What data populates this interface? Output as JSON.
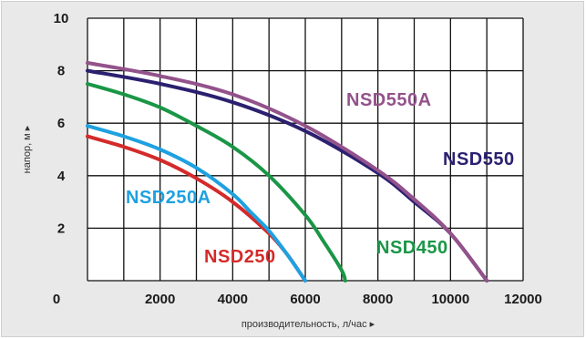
{
  "chart_data": {
    "type": "line",
    "title": "",
    "xlabel": "производительность, л/час ▸",
    "ylabel": "напор, м ▸",
    "xlim": [
      0,
      12000
    ],
    "ylim": [
      0,
      10
    ],
    "xticks": [
      "2000",
      "4000",
      "6000",
      "8000",
      "10000",
      "12000"
    ],
    "yticks": [
      "2",
      "4",
      "6",
      "8",
      "10"
    ],
    "origin_label": "0",
    "grid": true,
    "series": [
      {
        "name": "NSD250",
        "color": "#d42a2a",
        "x": [
          0,
          1000,
          2000,
          3000,
          4000,
          5000,
          5500,
          6000
        ],
        "y": [
          5.5,
          5.1,
          4.6,
          3.9,
          3.0,
          1.8,
          1.0,
          0
        ]
      },
      {
        "name": "NSD250A",
        "color": "#1ea1e0",
        "x": [
          0,
          1000,
          2000,
          3000,
          4000,
          4500,
          5000,
          5500,
          6000
        ],
        "y": [
          5.9,
          5.5,
          5.0,
          4.3,
          3.3,
          2.6,
          1.9,
          1.0,
          0
        ]
      },
      {
        "name": "NSD450",
        "color": "#1a9646",
        "x": [
          0,
          1000,
          2000,
          3000,
          4000,
          5000,
          6000,
          6500,
          7000,
          7100
        ],
        "y": [
          7.5,
          7.1,
          6.6,
          5.9,
          5.1,
          4.0,
          2.5,
          1.5,
          0.4,
          0
        ]
      },
      {
        "name": "NSD550",
        "color": "#2b2070",
        "x": [
          0,
          2000,
          4000,
          6000,
          8000,
          9000,
          10000,
          11000
        ],
        "y": [
          8.0,
          7.5,
          6.8,
          5.7,
          4.1,
          3.0,
          1.8,
          0
        ]
      },
      {
        "name": "NSD550A",
        "color": "#93528b",
        "x": [
          0,
          2000,
          4000,
          6000,
          8000,
          9000,
          10000,
          11000
        ],
        "y": [
          8.3,
          7.8,
          7.1,
          5.9,
          4.2,
          3.1,
          1.8,
          0
        ]
      }
    ],
    "annotations": [
      "NSD250",
      "NSD250A",
      "NSD450",
      "NSD550",
      "NSD550A"
    ]
  }
}
